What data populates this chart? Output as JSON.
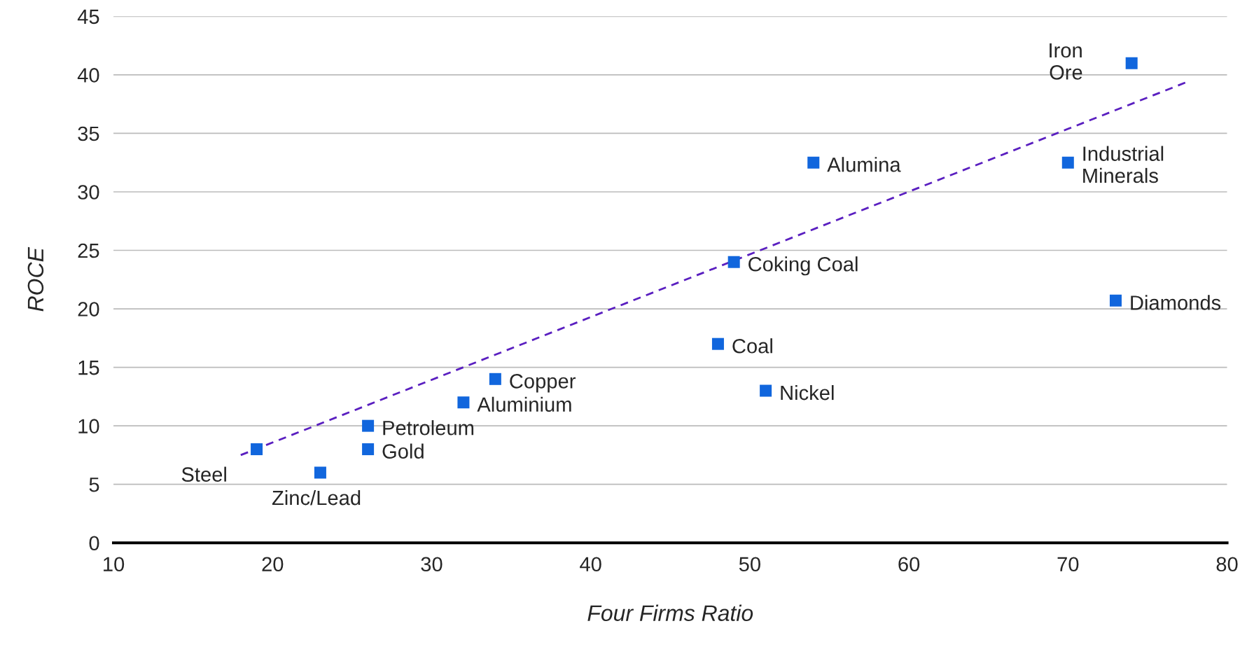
{
  "chart_data": {
    "type": "scatter",
    "xlabel": "Four Firms Ratio",
    "ylabel": "ROCE",
    "xlim": [
      10,
      80
    ],
    "xticks": [
      10,
      20,
      30,
      40,
      50,
      60,
      70,
      80
    ],
    "ylim": [
      0,
      45
    ],
    "yticks": [
      0,
      5,
      10,
      15,
      20,
      25,
      30,
      35,
      40,
      45
    ],
    "grid": "y",
    "marker": "square",
    "series": [
      {
        "color": "#1166dd",
        "x": [
          19,
          23,
          26,
          26,
          32,
          34,
          48,
          49,
          51,
          54,
          70,
          73,
          74
        ],
        "values": [
          8,
          6,
          10,
          8,
          12,
          14,
          17,
          24,
          13,
          32.5,
          32.5,
          20.7,
          41
        ]
      },
      {
        "type": "line",
        "color": "#5a1fc0",
        "line_style": "dashed",
        "marker": "none",
        "x": [
          18,
          77.5
        ],
        "values": [
          7.5,
          39.4
        ]
      }
    ],
    "annotations": [
      {
        "text": "Steel",
        "x": 19,
        "y": 8
      },
      {
        "text": "Zinc/Lead",
        "x": 23,
        "y": 6
      },
      {
        "text": "Petroleum",
        "x": 26,
        "y": 10
      },
      {
        "text": "Gold",
        "x": 26,
        "y": 8
      },
      {
        "text": "Aluminium",
        "x": 32,
        "y": 12
      },
      {
        "text": "Copper",
        "x": 34,
        "y": 14
      },
      {
        "text": "Coal",
        "x": 48,
        "y": 17
      },
      {
        "text": "Coking Coal",
        "x": 49,
        "y": 24
      },
      {
        "text": "Nickel",
        "x": 51,
        "y": 13
      },
      {
        "text": "Alumina",
        "x": 54,
        "y": 32.5
      },
      {
        "text": "Industrial\nMinerals",
        "x": 70,
        "y": 32.5
      },
      {
        "text": "Diamonds",
        "x": 73,
        "y": 20.7
      },
      {
        "text": "Iron\nOre",
        "x": 74,
        "y": 41
      }
    ]
  }
}
